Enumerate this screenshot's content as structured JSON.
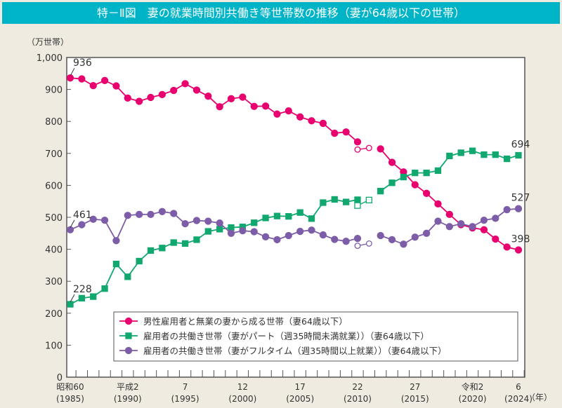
{
  "chart_data": {
    "type": "line",
    "title": "特－Ⅱ図　妻の就業時間別共働き等世帯数の推移（妻が64歳以下の世帯）",
    "ylabel": "（万世帯）",
    "xlabel": "（年）",
    "ylim": [
      0,
      1000
    ],
    "yticks": [
      "0",
      "100",
      "200",
      "300",
      "400",
      "500",
      "600",
      "700",
      "800",
      "900",
      "1,000"
    ],
    "xlim": [
      1985,
      2024
    ],
    "xtick_labels": [
      {
        "year": 1985,
        "era": "昭和60",
        "western": "(1985)"
      },
      {
        "year": 1990,
        "era": "平成2",
        "western": "(1990)"
      },
      {
        "year": 1995,
        "era": "7",
        "western": "(1995)"
      },
      {
        "year": 2000,
        "era": "12",
        "western": "(2000)"
      },
      {
        "year": 2005,
        "era": "17",
        "western": "(2005)"
      },
      {
        "year": 2010,
        "era": "22",
        "western": "(2010)"
      },
      {
        "year": 2015,
        "era": "27",
        "western": "(2015)"
      },
      {
        "year": 2020,
        "era": "令和2",
        "western": "(2020)"
      },
      {
        "year": 2024,
        "era": "6",
        "western": "(2024)"
      }
    ],
    "grid": false,
    "legend_position": "bottom-center",
    "x": [
      1985,
      1986,
      1987,
      1988,
      1989,
      1990,
      1991,
      1992,
      1993,
      1994,
      1995,
      1996,
      1997,
      1998,
      1999,
      2000,
      2001,
      2002,
      2003,
      2004,
      2005,
      2006,
      2007,
      2008,
      2009,
      2010,
      2011,
      2012,
      2013,
      2014,
      2015,
      2016,
      2017,
      2018,
      2019,
      2020,
      2021,
      2022,
      2023,
      2024
    ],
    "series": [
      {
        "name": "男性雇用者と無業の妻から成る世帯（妻64歳以下）",
        "color": "#e8006e",
        "marker": "circle",
        "values": [
          936,
          933,
          912,
          928,
          911,
          873,
          863,
          875,
          884,
          897,
          918,
          898,
          879,
          846,
          871,
          876,
          847,
          848,
          823,
          833,
          814,
          802,
          794,
          763,
          767,
          736,
          null,
          714,
          672,
          642,
          602,
          575,
          542,
          509,
          477,
          467,
          461,
          432,
          407,
          398
        ],
        "supplementary": {
          "x": [
            2010,
            2011
          ],
          "values": [
            712,
            717
          ]
        },
        "labels": [
          {
            "year": 1985,
            "text": "936"
          },
          {
            "year": 2024,
            "text": "398"
          }
        ]
      },
      {
        "name": "雇用者の共働き世帯（妻がパート（週35時間未満就業））（妻64歳以下）",
        "color": "#10a86e",
        "marker": "square",
        "values": [
          228,
          247,
          252,
          277,
          354,
          314,
          363,
          396,
          404,
          421,
          418,
          430,
          456,
          463,
          468,
          470,
          483,
          498,
          504,
          503,
          515,
          496,
          546,
          556,
          548,
          555,
          null,
          582,
          608,
          626,
          639,
          639,
          646,
          692,
          702,
          708,
          696,
          696,
          683,
          694
        ],
        "supplementary": {
          "x": [
            2010,
            2011
          ],
          "values": [
            537,
            554
          ]
        },
        "labels": [
          {
            "year": 1985,
            "text": "228"
          },
          {
            "year": 2024,
            "text": "694"
          }
        ]
      },
      {
        "name": "雇用者の共働き世帯（妻がフルタイム（週35時間以上就業））（妻64歳以下）",
        "color": "#7d5ca8",
        "marker": "circle",
        "values": [
          461,
          477,
          494,
          491,
          427,
          506,
          509,
          509,
          518,
          512,
          480,
          490,
          488,
          482,
          450,
          458,
          455,
          439,
          430,
          443,
          456,
          460,
          445,
          431,
          425,
          434,
          null,
          443,
          430,
          416,
          438,
          450,
          488,
          471,
          480,
          471,
          491,
          497,
          524,
          527
        ],
        "supplementary": {
          "x": [
            2010,
            2011
          ],
          "values": [
            411,
            418
          ]
        },
        "labels": [
          {
            "year": 1985,
            "text": "461"
          },
          {
            "year": 2024,
            "text": "527"
          }
        ]
      }
    ]
  }
}
